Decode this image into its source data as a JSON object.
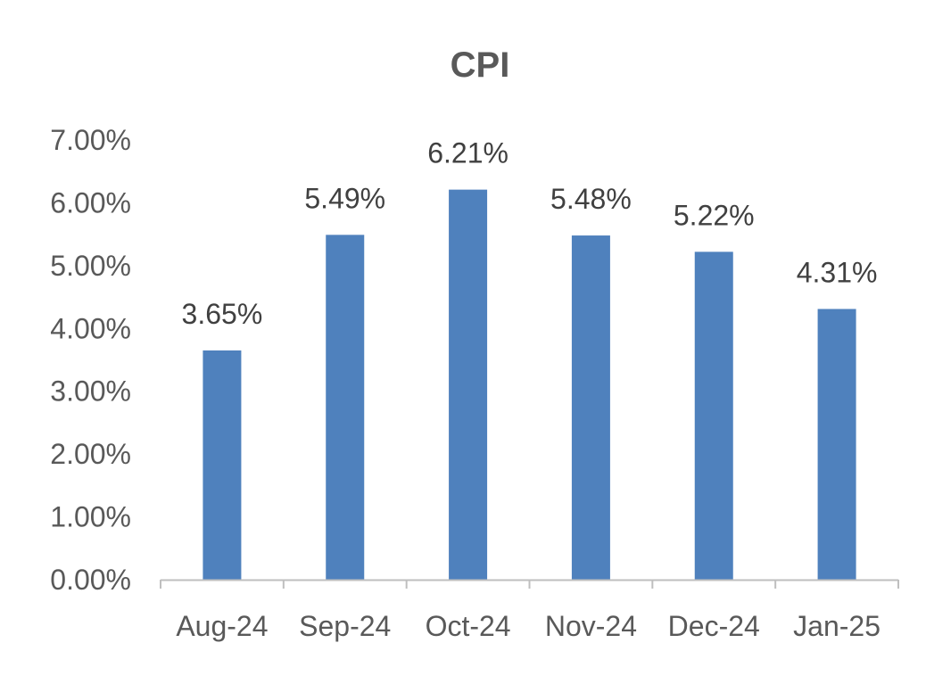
{
  "chart_data": {
    "type": "bar",
    "title": "CPI",
    "categories": [
      "Aug-24",
      "Sep-24",
      "Oct-24",
      "Nov-24",
      "Dec-24",
      "Jan-25"
    ],
    "values": [
      3.65,
      5.49,
      6.21,
      5.48,
      5.22,
      4.31
    ],
    "data_labels": [
      "3.65%",
      "5.49%",
      "6.21%",
      "5.48%",
      "5.22%",
      "4.31%"
    ],
    "yticks": [
      0,
      1,
      2,
      3,
      4,
      5,
      6,
      7
    ],
    "ytick_labels": [
      "0.00%",
      "1.00%",
      "2.00%",
      "3.00%",
      "4.00%",
      "5.00%",
      "6.00%",
      "7.00%"
    ],
    "ylim": [
      0,
      7
    ],
    "xlabel": "",
    "ylabel": "",
    "grid": false,
    "legend": "none",
    "bar_color": "#4F81BD",
    "axis_color": "#BFBFBF",
    "text_color": "#595959"
  }
}
